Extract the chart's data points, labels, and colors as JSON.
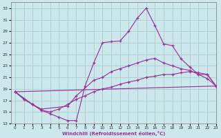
{
  "xlabel": "Windchill (Refroidissement éolien,°C)",
  "xlim": [
    -0.5,
    23
  ],
  "ylim": [
    13,
    34
  ],
  "xticks": [
    0,
    1,
    2,
    3,
    4,
    5,
    6,
    7,
    8,
    9,
    10,
    11,
    12,
    13,
    14,
    15,
    16,
    17,
    18,
    19,
    20,
    21,
    22,
    23
  ],
  "yticks": [
    13,
    15,
    17,
    19,
    21,
    23,
    25,
    27,
    29,
    31,
    33
  ],
  "bg_color": "#cce8ec",
  "grid_color": "#aacccc",
  "line_color": "#993399",
  "line1_x": [
    0,
    1,
    2,
    3,
    4,
    5,
    6,
    7,
    8,
    9,
    10,
    11,
    12,
    13,
    14,
    15,
    16,
    17,
    18,
    19,
    20,
    21,
    22,
    23
  ],
  "line1_y": [
    18.5,
    17.2,
    16.3,
    15.3,
    14.7,
    14.1,
    13.5,
    13.5,
    19.5,
    23.5,
    27.0,
    27.2,
    27.3,
    29.0,
    31.3,
    33.0,
    30.0,
    26.8,
    26.5,
    24.2,
    22.8,
    21.5,
    20.8,
    19.5
  ],
  "line2_x": [
    0,
    2,
    3,
    6,
    7,
    9,
    10,
    11,
    12,
    13,
    14,
    15,
    16,
    17,
    18,
    19,
    20,
    21,
    22,
    23
  ],
  "line2_y": [
    18.5,
    16.3,
    15.5,
    16.0,
    17.8,
    20.5,
    21.0,
    22.0,
    22.5,
    23.0,
    23.5,
    24.0,
    24.3,
    23.5,
    23.0,
    22.5,
    22.2,
    21.5,
    21.5,
    19.5
  ],
  "line3_x": [
    0,
    23
  ],
  "line3_y": [
    18.5,
    19.5
  ],
  "line4_x": [
    0,
    1,
    2,
    3,
    4,
    5,
    6,
    7,
    8,
    9,
    10,
    11,
    12,
    13,
    14,
    15,
    16,
    17,
    18,
    19,
    20,
    21,
    22,
    23
  ],
  "line4_y": [
    18.5,
    17.2,
    16.3,
    15.3,
    15.0,
    15.5,
    16.3,
    17.2,
    17.8,
    18.5,
    19.0,
    19.3,
    19.8,
    20.2,
    20.5,
    21.0,
    21.2,
    21.5,
    21.5,
    21.8,
    22.0,
    21.8,
    21.5,
    19.5
  ]
}
